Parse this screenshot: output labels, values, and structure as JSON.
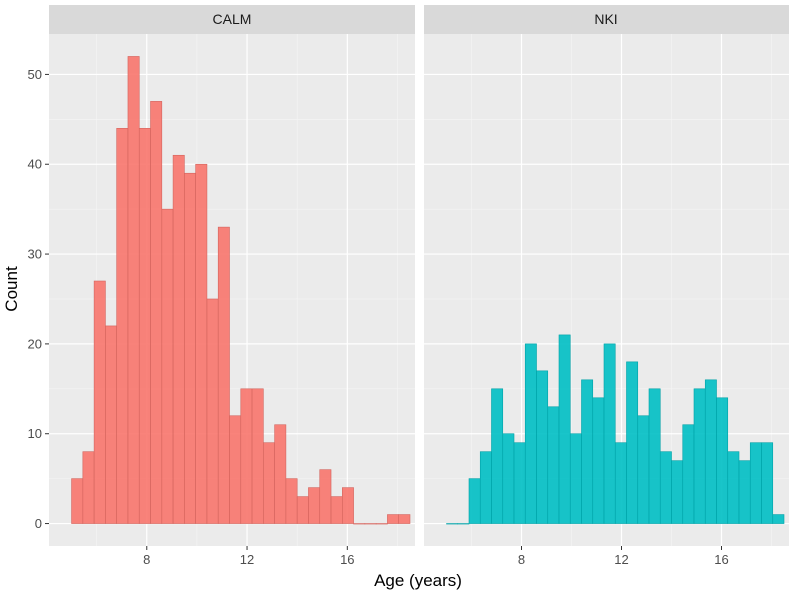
{
  "chart_data": {
    "type": "bar",
    "subtype": "faceted-histogram",
    "xlabel": "Age (years)",
    "ylabel": "Count",
    "ylim": [
      -2.5,
      54.5
    ],
    "yticks": [
      0,
      10,
      20,
      30,
      40,
      50
    ],
    "xticks": [
      8,
      12,
      16
    ],
    "bin_width": 0.45,
    "grid": true,
    "legend": "none",
    "facets": [
      {
        "name": "CALM",
        "color": "#F8766D",
        "xlim": [
          4.1,
          18.7
        ],
        "bin_start": 5.0,
        "values": [
          5,
          8,
          27,
          22,
          44,
          52,
          44,
          47,
          35,
          41,
          39,
          40,
          25,
          33,
          12,
          15,
          15,
          9,
          11,
          5,
          3,
          4,
          6,
          3,
          4,
          0,
          0,
          0,
          1,
          1
        ]
      },
      {
        "name": "NKI",
        "color": "#00BFC4",
        "xlim": [
          4.1,
          18.7
        ],
        "bin_start": 5.0,
        "values": [
          0,
          0,
          5,
          8,
          15,
          10,
          9,
          20,
          17,
          13,
          21,
          10,
          16,
          14,
          20,
          9,
          18,
          12,
          15,
          8,
          7,
          11,
          15,
          16,
          14,
          8,
          7,
          9,
          9,
          1
        ]
      }
    ]
  }
}
